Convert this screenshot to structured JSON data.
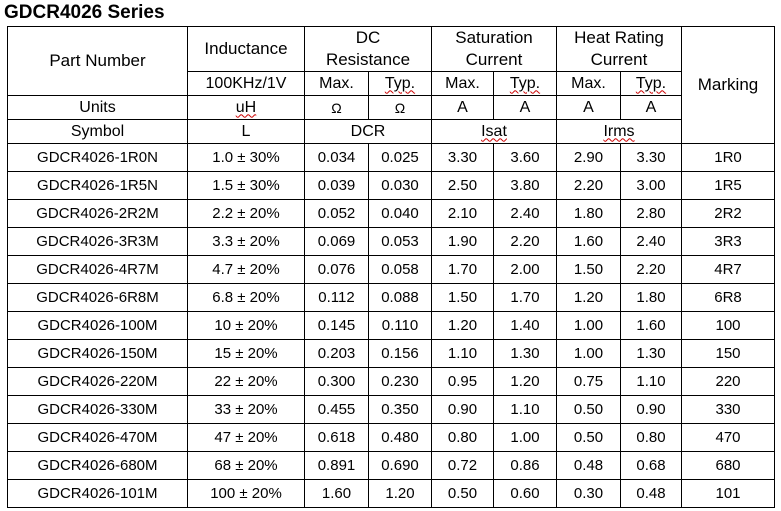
{
  "title": "GDCR4026 Series",
  "header": {
    "part_number": "Part Number",
    "inductance": "Inductance",
    "dc_resistance_1": "DC",
    "dc_resistance_2": "Resistance",
    "saturation_1": "Saturation",
    "saturation_2": "Current",
    "heat_1": "Heat Rating",
    "heat_2": "Current",
    "marking": "Marking",
    "test_condition": "100KHz/1V",
    "max": "Max.",
    "typ": "Typ.",
    "units_label": "Units",
    "unit_inductance": "uH",
    "unit_ohm": "Ω",
    "unit_amp": "A",
    "symbol_label": "Symbol",
    "symbol_inductance": "L",
    "symbol_dcr": "DCR",
    "symbol_isat": "Isat",
    "symbol_irms": "Irms"
  },
  "rows": [
    {
      "part": "GDCR4026-1R0N",
      "inductance": "1.0 ± 30%",
      "dcr_max": "0.034",
      "dcr_typ": "0.025",
      "isat_max": "3.30",
      "isat_typ": "3.60",
      "irms_max": "2.90",
      "irms_typ": "3.30",
      "marking": "1R0"
    },
    {
      "part": "GDCR4026-1R5N",
      "inductance": "1.5 ± 30%",
      "dcr_max": "0.039",
      "dcr_typ": "0.030",
      "isat_max": "2.50",
      "isat_typ": "3.80",
      "irms_max": "2.20",
      "irms_typ": "3.00",
      "marking": "1R5"
    },
    {
      "part": "GDCR4026-2R2M",
      "inductance": "2.2 ± 20%",
      "dcr_max": "0.052",
      "dcr_typ": "0.040",
      "isat_max": "2.10",
      "isat_typ": "2.40",
      "irms_max": "1.80",
      "irms_typ": "2.80",
      "marking": "2R2"
    },
    {
      "part": "GDCR4026-3R3M",
      "inductance": "3.3 ± 20%",
      "dcr_max": "0.069",
      "dcr_typ": "0.053",
      "isat_max": "1.90",
      "isat_typ": "2.20",
      "irms_max": "1.60",
      "irms_typ": "2.40",
      "marking": "3R3"
    },
    {
      "part": "GDCR4026-4R7M",
      "inductance": "4.7 ± 20%",
      "dcr_max": "0.076",
      "dcr_typ": "0.058",
      "isat_max": "1.70",
      "isat_typ": "2.00",
      "irms_max": "1.50",
      "irms_typ": "2.20",
      "marking": "4R7"
    },
    {
      "part": "GDCR4026-6R8M",
      "inductance": "6.8 ± 20%",
      "dcr_max": "0.112",
      "dcr_typ": "0.088",
      "isat_max": "1.50",
      "isat_typ": "1.70",
      "irms_max": "1.20",
      "irms_typ": "1.80",
      "marking": "6R8"
    },
    {
      "part": "GDCR4026-100M",
      "inductance": "10 ± 20%",
      "dcr_max": "0.145",
      "dcr_typ": "0.110",
      "isat_max": "1.20",
      "isat_typ": "1.40",
      "irms_max": "1.00",
      "irms_typ": "1.60",
      "marking": "100"
    },
    {
      "part": "GDCR4026-150M",
      "inductance": "15 ± 20%",
      "dcr_max": "0.203",
      "dcr_typ": "0.156",
      "isat_max": "1.10",
      "isat_typ": "1.30",
      "irms_max": "1.00",
      "irms_typ": "1.30",
      "marking": "150"
    },
    {
      "part": "GDCR4026-220M",
      "inductance": "22 ± 20%",
      "dcr_max": "0.300",
      "dcr_typ": "0.230",
      "isat_max": "0.95",
      "isat_typ": "1.20",
      "irms_max": "0.75",
      "irms_typ": "1.10",
      "marking": "220"
    },
    {
      "part": "GDCR4026-330M",
      "inductance": "33 ± 20%",
      "dcr_max": "0.455",
      "dcr_typ": "0.350",
      "isat_max": "0.90",
      "isat_typ": "1.10",
      "irms_max": "0.50",
      "irms_typ": "0.90",
      "marking": "330"
    },
    {
      "part": "GDCR4026-470M",
      "inductance": "47 ± 20%",
      "dcr_max": "0.618",
      "dcr_typ": "0.480",
      "isat_max": "0.80",
      "isat_typ": "1.00",
      "irms_max": "0.50",
      "irms_typ": "0.80",
      "marking": "470"
    },
    {
      "part": "GDCR4026-680M",
      "inductance": "68 ± 20%",
      "dcr_max": "0.891",
      "dcr_typ": "0.690",
      "isat_max": "0.72",
      "isat_typ": "0.86",
      "irms_max": "0.48",
      "irms_typ": "0.68",
      "marking": "680"
    },
    {
      "part": "GDCR4026-101M",
      "inductance": "100 ± 20%",
      "dcr_max": "1.60",
      "dcr_typ": "1.20",
      "isat_max": "0.50",
      "isat_typ": "0.60",
      "irms_max": "0.30",
      "irms_typ": "0.48",
      "marking": "101"
    }
  ]
}
